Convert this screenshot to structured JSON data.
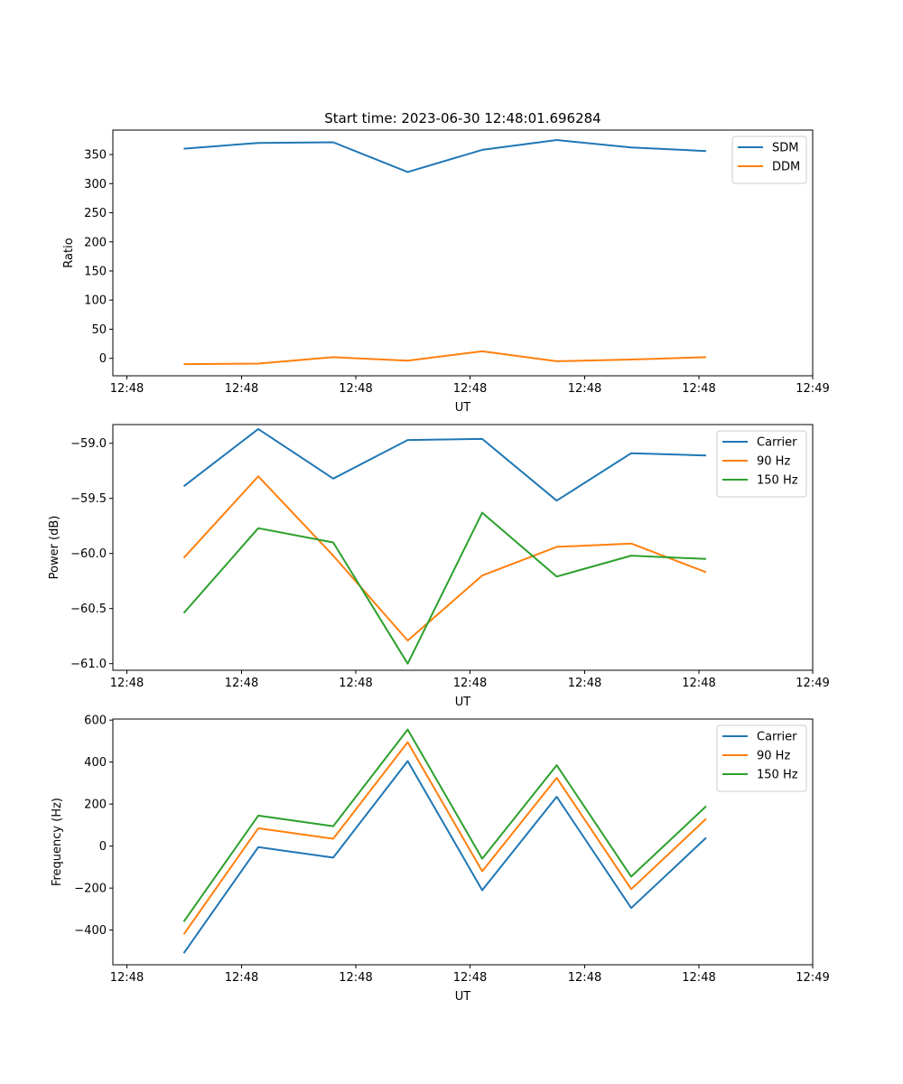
{
  "title": "Start time: 2023-06-30 12:48:01.696284",
  "colors": {
    "blue": "#1f77b4",
    "orange": "#ff7f0e",
    "green": "#2ca02c"
  },
  "chart_data": [
    {
      "type": "line",
      "xlabel": "UT",
      "ylabel": "Ratio",
      "xticks": [
        "12:48",
        "12:48",
        "12:48",
        "12:48",
        "12:48",
        "12:48",
        "12:49"
      ],
      "yticks": [
        0,
        50,
        100,
        150,
        200,
        250,
        300,
        350
      ],
      "ylim": [
        -30,
        392
      ],
      "legend_position": "top-right",
      "grid": false,
      "series": [
        {
          "name": "SDM",
          "color": "#1f77b4",
          "values": [
            360,
            370,
            371,
            320,
            358,
            375,
            362,
            356
          ]
        },
        {
          "name": "DDM",
          "color": "#ff7f0e",
          "values": [
            -10,
            -9,
            2,
            -4,
            12,
            -5,
            -2,
            2
          ]
        }
      ]
    },
    {
      "type": "line",
      "xlabel": "UT",
      "ylabel": "Power (dB)",
      "xticks": [
        "12:48",
        "12:48",
        "12:48",
        "12:48",
        "12:48",
        "12:48",
        "12:49"
      ],
      "yticks": [
        -61.0,
        -60.5,
        -60.0,
        -59.5,
        -59.0
      ],
      "ylim": [
        -61.06,
        -58.83
      ],
      "legend_position": "top-right",
      "grid": false,
      "series": [
        {
          "name": "Carrier",
          "color": "#1f77b4",
          "values": [
            -59.39,
            -58.87,
            -59.32,
            -58.97,
            -58.96,
            -59.52,
            -59.09,
            -59.11
          ]
        },
        {
          "name": "90 Hz",
          "color": "#ff7f0e",
          "values": [
            -60.04,
            -59.3,
            -60.02,
            -60.79,
            -60.2,
            -59.94,
            -59.91,
            -60.17
          ]
        },
        {
          "name": "150 Hz",
          "color": "#2ca02c",
          "values": [
            -60.54,
            -59.77,
            -59.9,
            -61.0,
            -59.63,
            -60.21,
            -60.02,
            -60.05
          ]
        }
      ]
    },
    {
      "type": "line",
      "xlabel": "UT",
      "ylabel": "Frequency (Hz)",
      "xticks": [
        "12:48",
        "12:48",
        "12:48",
        "12:48",
        "12:48",
        "12:48",
        "12:49"
      ],
      "yticks": [
        -400,
        -200,
        0,
        200,
        400,
        600
      ],
      "ylim": [
        -565,
        605
      ],
      "legend_position": "top-right",
      "grid": false,
      "series": [
        {
          "name": "Carrier",
          "color": "#1f77b4",
          "values": [
            -510,
            -5,
            -55,
            405,
            -210,
            235,
            -295,
            40
          ]
        },
        {
          "name": "90 Hz",
          "color": "#ff7f0e",
          "values": [
            -420,
            85,
            35,
            495,
            -120,
            325,
            -205,
            130
          ]
        },
        {
          "name": "150 Hz",
          "color": "#2ca02c",
          "values": [
            -360,
            145,
            95,
            555,
            -60,
            385,
            -145,
            190
          ]
        }
      ]
    }
  ]
}
